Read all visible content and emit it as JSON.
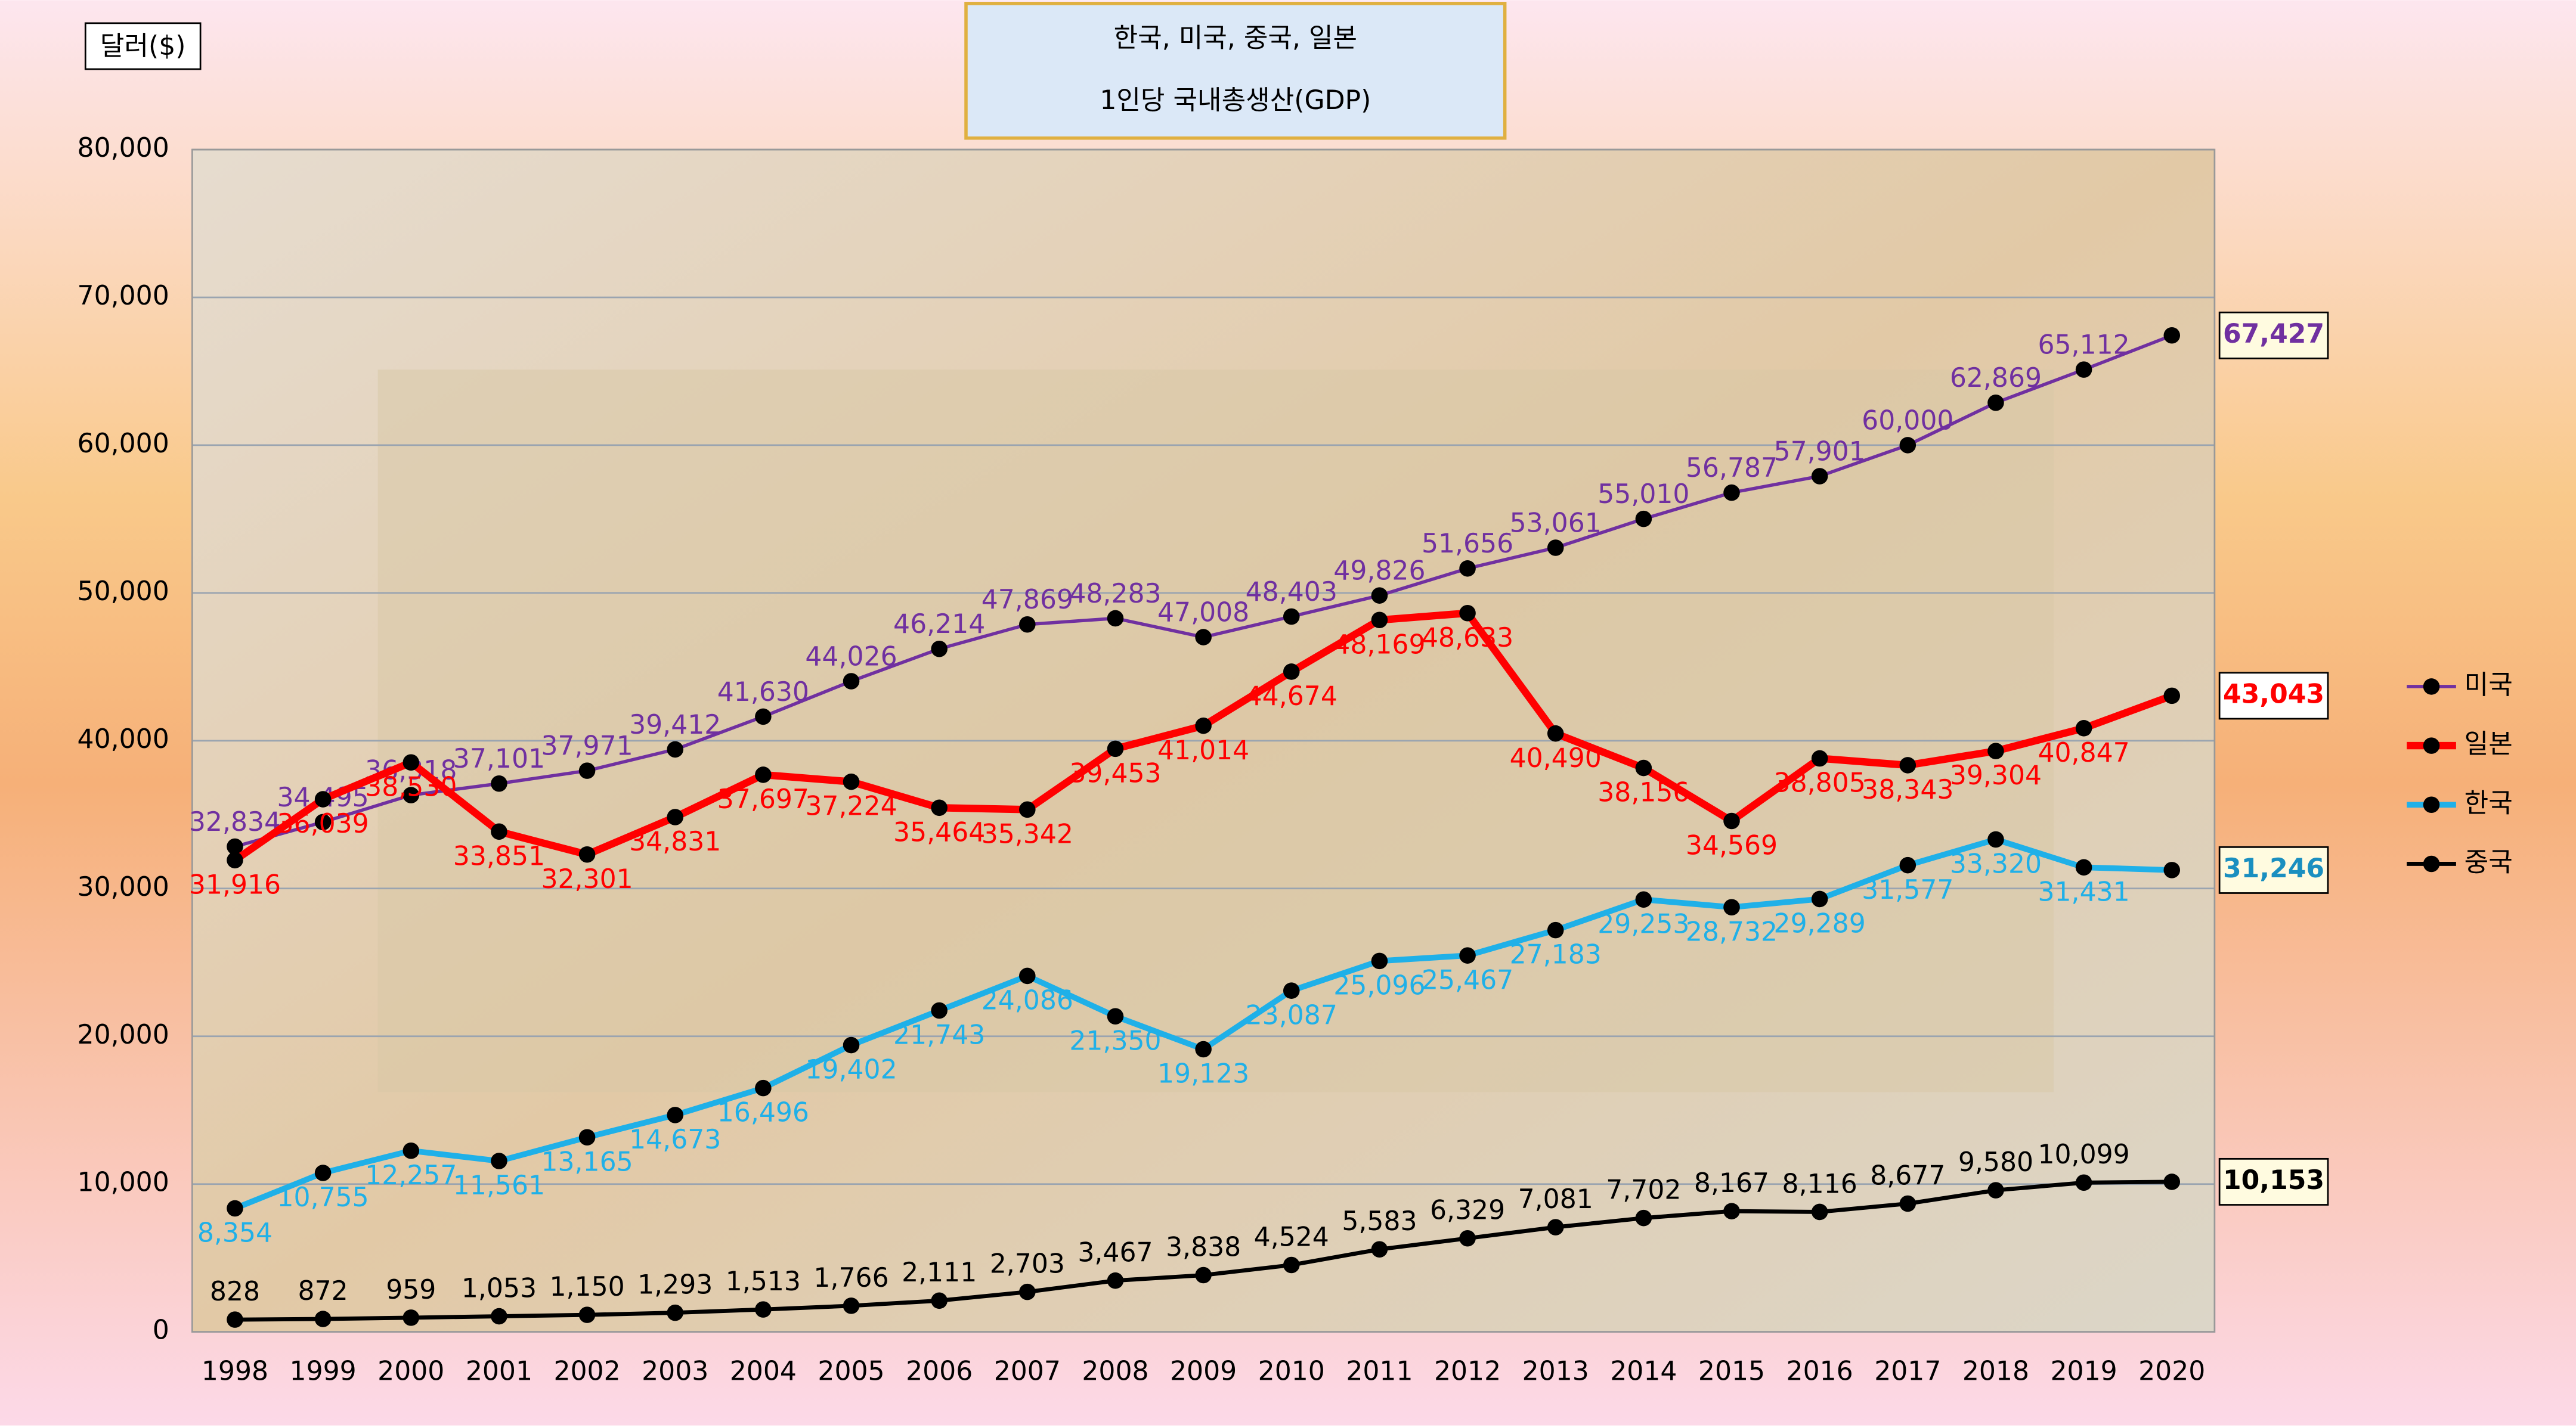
{
  "chart_data": {
    "type": "line",
    "title": [
      "한국, 미국, 중국, 일본",
      "1인당 국내총생산(GDP)"
    ],
    "y_label": "달러($)",
    "categories": [
      "1998",
      "1999",
      "2000",
      "2001",
      "2002",
      "2003",
      "2004",
      "2005",
      "2006",
      "2007",
      "2008",
      "2009",
      "2010",
      "2011",
      "2012",
      "2013",
      "2014",
      "2015",
      "2016",
      "2017",
      "2018",
      "2019",
      "2020"
    ],
    "ylim": [
      0,
      80000
    ],
    "yticks": [
      0,
      {
        "value": 10000,
        "label": "10,000"
      },
      {
        "value": 20000,
        "label": "20,000"
      },
      {
        "value": 30000,
        "label": "30,000"
      },
      {
        "value": 40000,
        "label": "40,000"
      },
      {
        "value": 50000,
        "label": "50,000"
      },
      {
        "value": 60000,
        "label": "60,000"
      },
      {
        "value": 70000,
        "label": "70,000"
      },
      {
        "value": 80000,
        "label": "80,000"
      }
    ],
    "grid": true,
    "legend": "right",
    "series": [
      {
        "name": "미국",
        "color": "#7030a0",
        "values": [
          32834,
          34495,
          36318,
          37101,
          37971,
          39412,
          41630,
          44026,
          46214,
          47869,
          48283,
          47008,
          48403,
          49826,
          51656,
          53061,
          55010,
          56787,
          57901,
          60000,
          62869,
          65112,
          67427
        ],
        "value_labels": [
          "32,834",
          "34,495",
          "36,318",
          "37,101",
          "37,971",
          "39,412",
          "41,630",
          "44,026",
          "46,214",
          "47,869",
          "48,283",
          "47,008",
          "48,403",
          "49,826",
          "51,656",
          "53,061",
          "55,010",
          "56,787",
          "57,901",
          "60,000",
          "62,869",
          "65,112",
          "67,427"
        ]
      },
      {
        "name": "일본",
        "color": "#ff0000",
        "values": [
          31916,
          36039,
          38530,
          33851,
          32301,
          34831,
          37697,
          37224,
          35464,
          35342,
          39453,
          41014,
          44674,
          48169,
          48633,
          40490,
          38156,
          34569,
          38805,
          38343,
          39304,
          40847,
          43043
        ],
        "value_labels": [
          "31,916",
          "36,039",
          "38,530",
          "33,851",
          "32,301",
          "34,831",
          "37,697",
          "37,224",
          "35,464",
          "35,342",
          "39,453",
          "41,014",
          "44,674",
          "48,169",
          "48,633",
          "40,490",
          "38,156",
          "34,569",
          "38,805",
          "38,343",
          "39,304",
          "40,847",
          "43,043"
        ]
      },
      {
        "name": "한국",
        "color": "#1fb0e8",
        "values": [
          8354,
          10755,
          12257,
          11561,
          13165,
          14673,
          16496,
          19402,
          21743,
          24086,
          21350,
          19123,
          23087,
          25096,
          25467,
          27183,
          29253,
          28732,
          29289,
          31577,
          33320,
          31431,
          31246
        ],
        "value_labels": [
          "8,354",
          "10,755",
          "12,257",
          "11,561",
          "13,165",
          "14,673",
          "16,496",
          "19,402",
          "21,743",
          "24,086",
          "21,350",
          "19,123",
          "23,087",
          "25,096",
          "25,467",
          "27,183",
          "29,253",
          "28,732",
          "29,289",
          "31,577",
          "33,320",
          "31,431",
          "31,246"
        ]
      },
      {
        "name": "중국",
        "color": "#000000",
        "values": [
          828,
          872,
          959,
          1053,
          1150,
          1293,
          1513,
          1766,
          2111,
          2703,
          3467,
          3838,
          4524,
          5583,
          6329,
          7081,
          7702,
          8167,
          8116,
          8677,
          9580,
          10099,
          10153
        ],
        "value_labels": [
          "828",
          "872",
          "959",
          "1,053",
          "1,150",
          "1,293",
          "1,513",
          "1,766",
          "2,111",
          "2,703",
          "3,467",
          "3,838",
          "4,524",
          "5,583",
          "6,329",
          "7,081",
          "7,702",
          "8,167",
          "8,116",
          "8,677",
          "9,580",
          "10,099",
          "10,153"
        ]
      }
    ]
  }
}
